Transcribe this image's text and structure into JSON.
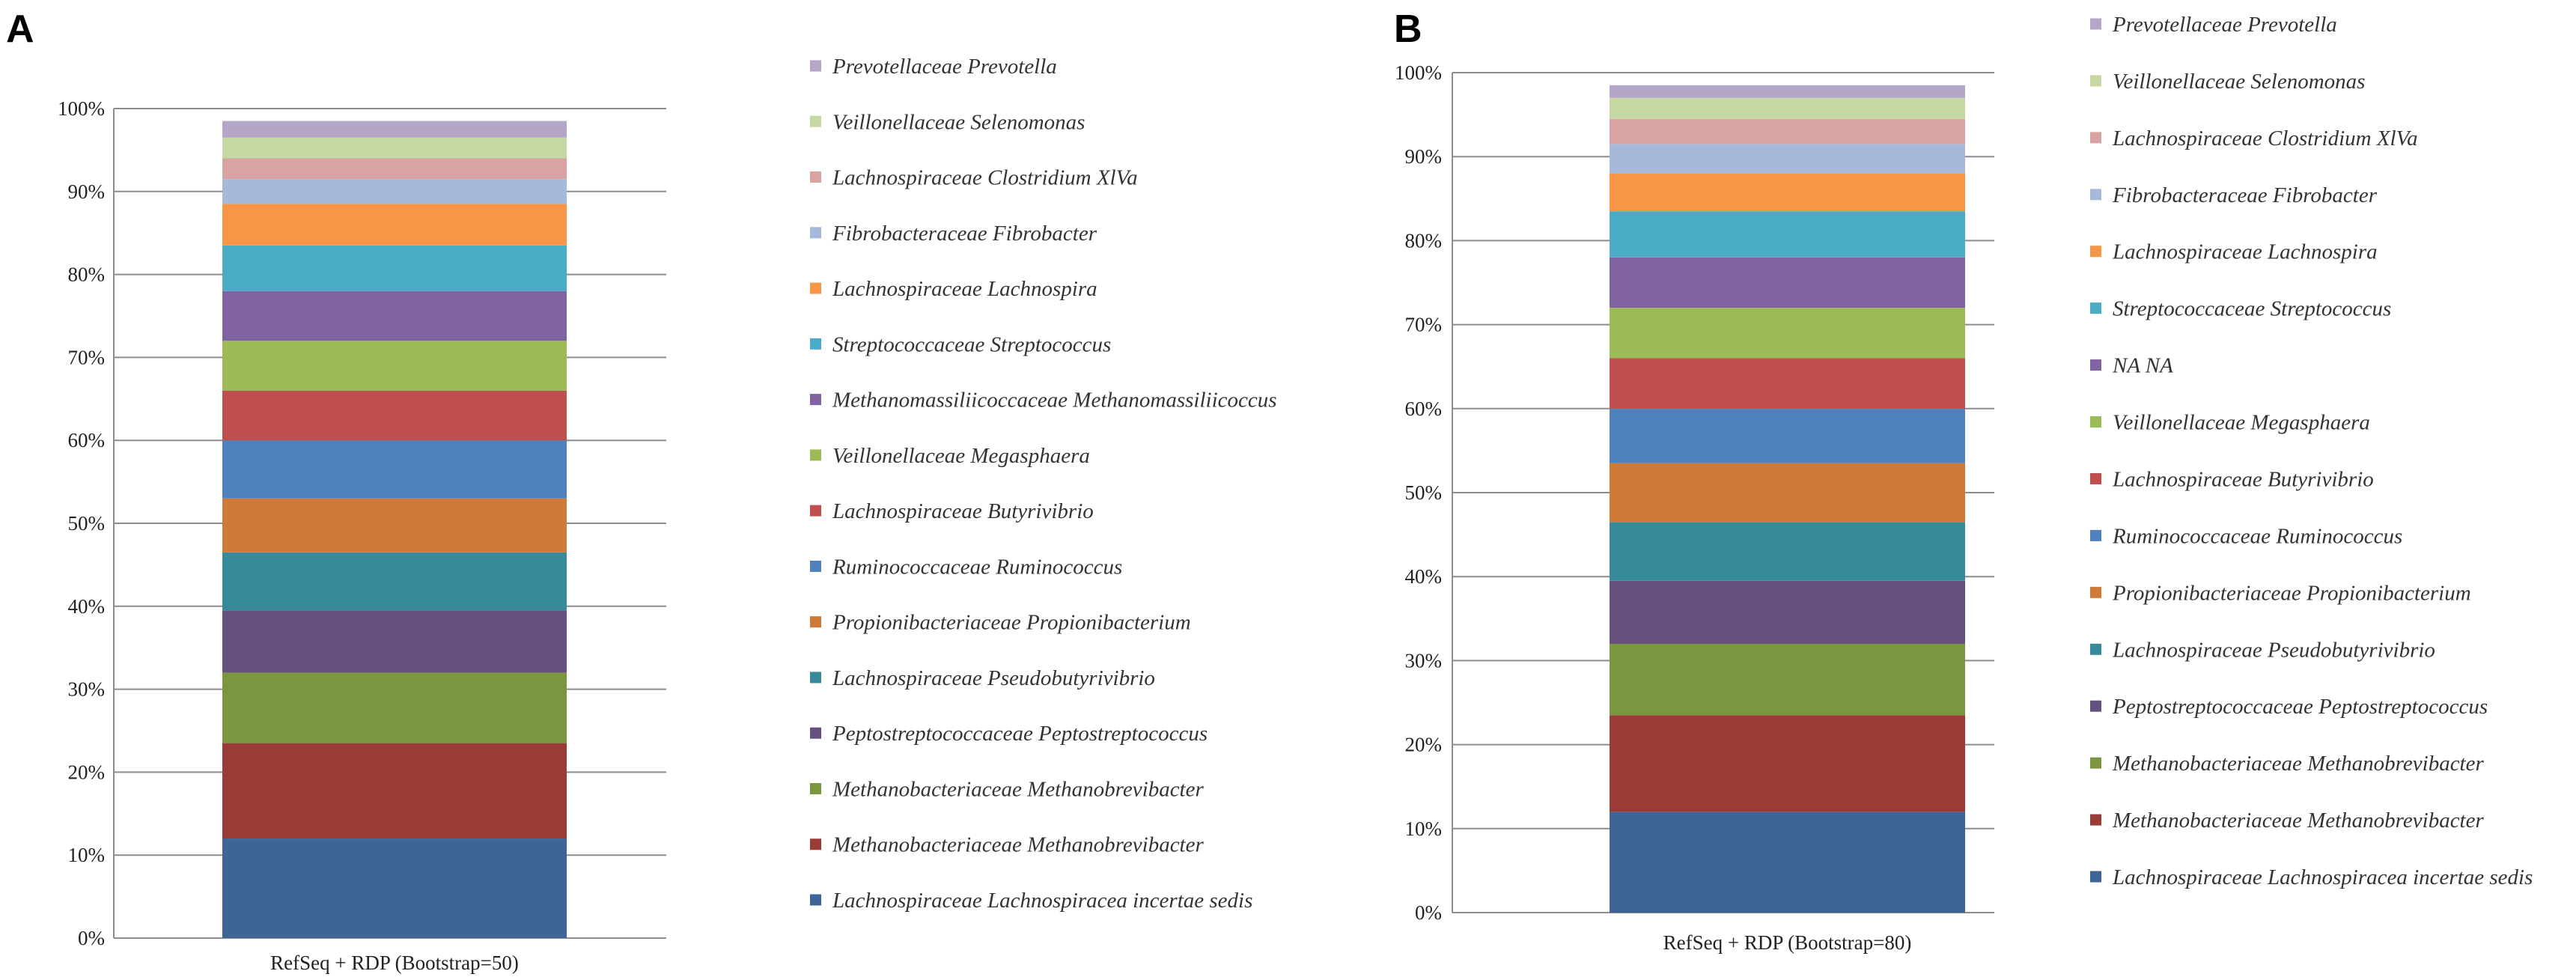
{
  "chart_data": [
    {
      "panel_label": "A",
      "type": "bar",
      "stacked": true,
      "categories": [
        "RefSeq + RDP (Bootstrap=50)"
      ],
      "y_ticks": [
        "0%",
        "10%",
        "20%",
        "30%",
        "40%",
        "50%",
        "60%",
        "70%",
        "80%",
        "90%",
        "100%"
      ],
      "ylim": [
        0,
        100
      ],
      "grid": true,
      "series": [
        {
          "name": "Lachnospiraceae Lachnospiracea incertae sedis",
          "values": [
            12
          ],
          "color": "#3E6596"
        },
        {
          "name": "Methanobacteriaceae Methanobrevibacter",
          "values": [
            11.5
          ],
          "color": "#9A3B38"
        },
        {
          "name": "Methanobacteriaceae Methanobrevibacter",
          "values": [
            8.5
          ],
          "color": "#7A973F"
        },
        {
          "name": "Peptostreptococcaceae Peptostreptococcus",
          "values": [
            7.5
          ],
          "color": "#66507F"
        },
        {
          "name": "Lachnospiraceae Pseudobutyrivibrio",
          "values": [
            7
          ],
          "color": "#378A9A"
        },
        {
          "name": "Propionibacteriaceae Propionibacterium",
          "values": [
            6.5
          ],
          "color": "#CF7A37"
        },
        {
          "name": "Ruminococcaceae Ruminococcus",
          "values": [
            7
          ],
          "color": "#4F81BD"
        },
        {
          "name": "Lachnospiraceae Butyrivibrio",
          "values": [
            6
          ],
          "color": "#C0504D"
        },
        {
          "name": "Veillonellaceae Megasphaera",
          "values": [
            6
          ],
          "color": "#9BBB59"
        },
        {
          "name": "Methanomassiliicoccaceae Methanomassiliicoccus",
          "values": [
            6
          ],
          "color": "#8064A2"
        },
        {
          "name": "Streptococcaceae Streptococcus",
          "values": [
            5.5
          ],
          "color": "#4BACC6"
        },
        {
          "name": "Lachnospiraceae Lachnospira",
          "values": [
            5
          ],
          "color": "#F79646"
        },
        {
          "name": "Fibrobacteraceae Fibrobacter",
          "values": [
            3
          ],
          "color": "#A7B9DA"
        },
        {
          "name": "Lachnospiraceae Clostridium XlVa",
          "values": [
            2.5
          ],
          "color": "#D9A3A3"
        },
        {
          "name": "Veillonellaceae Selenomonas",
          "values": [
            2.5
          ],
          "color": "#C5D8A4"
        },
        {
          "name": "Prevotellaceae Prevotella",
          "values": [
            2
          ],
          "color": "#B3A6C9"
        }
      ]
    },
    {
      "panel_label": "B",
      "type": "bar",
      "stacked": true,
      "categories": [
        "RefSeq + RDP (Bootstrap=80)"
      ],
      "y_ticks": [
        "0%",
        "10%",
        "20%",
        "30%",
        "40%",
        "50%",
        "60%",
        "70%",
        "80%",
        "90%",
        "100%"
      ],
      "ylim": [
        0,
        100
      ],
      "grid": true,
      "series": [
        {
          "name": "Lachnospiraceae Lachnospiracea incertae sedis",
          "values": [
            12
          ],
          "color": "#3E6596"
        },
        {
          "name": "Methanobacteriaceae Methanobrevibacter",
          "values": [
            11.5
          ],
          "color": "#9A3B38"
        },
        {
          "name": "Methanobacteriaceae Methanobrevibacter",
          "values": [
            8.5
          ],
          "color": "#7A973F"
        },
        {
          "name": "Peptostreptococcaceae Peptostreptococcus",
          "values": [
            7.5
          ],
          "color": "#66507F"
        },
        {
          "name": "Lachnospiraceae Pseudobutyrivibrio",
          "values": [
            7
          ],
          "color": "#378A9A"
        },
        {
          "name": "Propionibacteriaceae Propionibacterium",
          "values": [
            7
          ],
          "color": "#CF7A37"
        },
        {
          "name": "Ruminococcaceae Ruminococcus",
          "values": [
            6.5
          ],
          "color": "#4F81BD"
        },
        {
          "name": "Lachnospiraceae Butyrivibrio",
          "values": [
            6
          ],
          "color": "#C0504D"
        },
        {
          "name": "Veillonellaceae Megasphaera",
          "values": [
            6
          ],
          "color": "#9BBB59"
        },
        {
          "name": "NA NA",
          "values": [
            6
          ],
          "color": "#8064A2"
        },
        {
          "name": "Streptococcaceae Streptococcus",
          "values": [
            5.5
          ],
          "color": "#4BACC6"
        },
        {
          "name": "Lachnospiraceae Lachnospira",
          "values": [
            4.5
          ],
          "color": "#F79646"
        },
        {
          "name": "Fibrobacteraceae Fibrobacter",
          "values": [
            3.5
          ],
          "color": "#A7B9DA"
        },
        {
          "name": "Lachnospiraceae Clostridium XlVa",
          "values": [
            3
          ],
          "color": "#D9A3A3"
        },
        {
          "name": "Veillonellaceae Selenomonas",
          "values": [
            2.5
          ],
          "color": "#C5D8A4"
        },
        {
          "name": "Prevotellaceae Prevotella",
          "values": [
            1.5
          ],
          "color": "#B3A6C9"
        }
      ]
    }
  ]
}
